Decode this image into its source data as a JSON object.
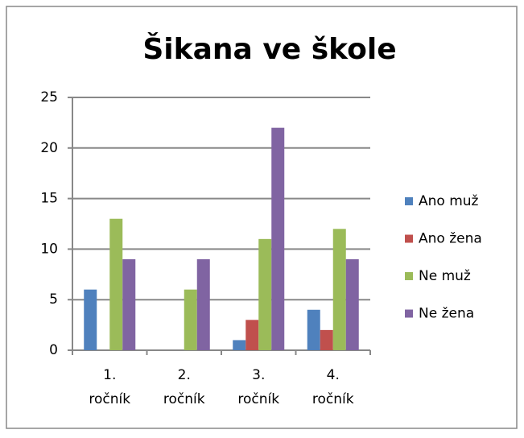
{
  "chart_data": {
    "type": "bar",
    "title": "Šikana ve škole",
    "categories": [
      "1. ročník",
      "2. ročník",
      "3. ročník",
      "4. ročník"
    ],
    "series": [
      {
        "name": "Ano muž",
        "color": "#4f81bd",
        "values": [
          6,
          0,
          1,
          4
        ]
      },
      {
        "name": "Ano žena",
        "color": "#c0504d",
        "values": [
          0,
          0,
          3,
          2
        ]
      },
      {
        "name": "Ne muž",
        "color": "#9bbb59",
        "values": [
          13,
          6,
          11,
          12
        ]
      },
      {
        "name": "Ne žena",
        "color": "#8064a2",
        "values": [
          9,
          9,
          22,
          9
        ]
      }
    ],
    "ylim": [
      0,
      25
    ],
    "yticks": [
      0,
      5,
      10,
      15,
      20,
      25
    ],
    "grid": true,
    "legend": "right"
  }
}
